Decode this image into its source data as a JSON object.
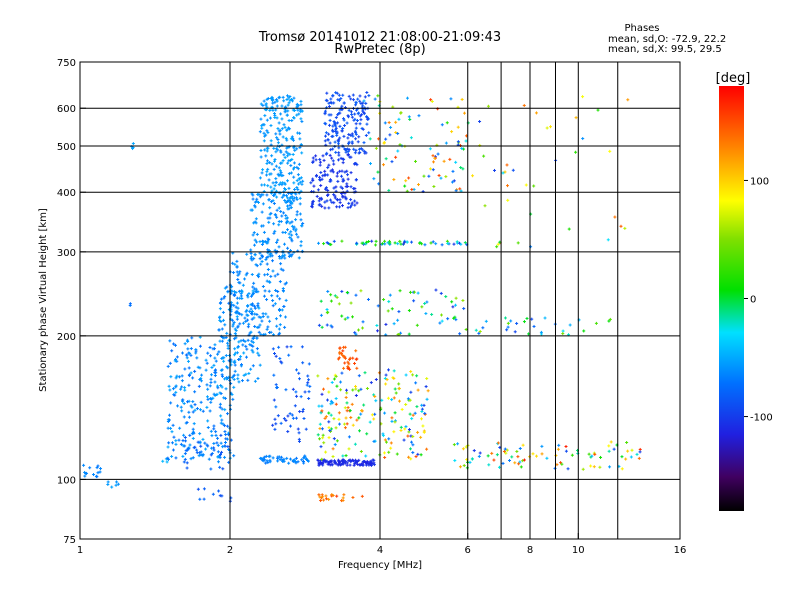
{
  "chart_data": {
    "type": "scatter",
    "title": "Tromsø 20141012 21:08:00-21:09:43",
    "subtitle": "RwPretec (8p)",
    "stats": {
      "heading": "Phases",
      "line1": "mean, sd,O: -72.9, 22.2",
      "line2": "mean, sd,X:  99.5, 29.5"
    },
    "xlabel": "Frequency [MHz]",
    "ylabel": "Stationary phase Virtual Height [km]",
    "x_scale": "log",
    "y_scale": "log",
    "xlim": [
      1,
      16
    ],
    "ylim": [
      75,
      750
    ],
    "x_ticks": [
      1,
      2,
      4,
      6,
      8,
      10,
      16
    ],
    "x_tick_labels": [
      "1",
      "2",
      "4",
      "6",
      "8",
      "10",
      "16"
    ],
    "x_grid": [
      2,
      4,
      6,
      7,
      8,
      9,
      10,
      12
    ],
    "y_ticks": [
      75,
      100,
      200,
      300,
      400,
      500,
      600,
      750
    ],
    "y_tick_labels": [
      "75",
      "100",
      "200",
      "300",
      "400",
      "500",
      "600",
      "750"
    ],
    "y_grid": [
      100,
      200,
      300,
      400,
      500,
      600
    ],
    "grid": true,
    "colorbar": {
      "label": "[deg]",
      "range": [
        -180,
        180
      ],
      "ticks": [
        100,
        0,
        -100
      ],
      "tick_labels": [
        "100",
        "0",
        "-100"
      ]
    },
    "clusters": [
      {
        "x": [
          1.0,
          1.1
        ],
        "h": [
          100,
          108
        ],
        "phase": [
          -70,
          -60
        ],
        "n": 14
      },
      {
        "x": [
          1.1,
          1.2
        ],
        "h": [
          96,
          100
        ],
        "phase": [
          -60,
          -50
        ],
        "n": 6
      },
      {
        "x": [
          1.27,
          1.29
        ],
        "h": [
          490,
          520
        ],
        "phase": [
          -60,
          -50
        ],
        "n": 4
      },
      {
        "x": [
          1.25,
          1.27
        ],
        "h": [
          228,
          236
        ],
        "phase": [
          -75,
          -65
        ],
        "n": 2
      },
      {
        "x": [
          1.4,
          1.5
        ],
        "h": [
          108,
          112
        ],
        "phase": [
          -50,
          -40
        ],
        "n": 3
      },
      {
        "x": [
          1.5,
          2.05
        ],
        "h": [
          110,
          200
        ],
        "phase": [
          -75,
          -50
        ],
        "n": 260
      },
      {
        "x": [
          1.6,
          2.0
        ],
        "h": [
          105,
          125
        ],
        "phase": [
          -90,
          -60
        ],
        "n": 40
      },
      {
        "x": [
          1.7,
          2.1
        ],
        "h": [
          88,
          96
        ],
        "phase": [
          -100,
          -70
        ],
        "n": 10
      },
      {
        "x": [
          1.9,
          2.3
        ],
        "h": [
          160,
          260
        ],
        "phase": [
          -70,
          -50
        ],
        "n": 150
      },
      {
        "x": [
          2.0,
          2.6
        ],
        "h": [
          200,
          300
        ],
        "phase": [
          -70,
          -55
        ],
        "n": 160
      },
      {
        "x": [
          2.2,
          2.8
        ],
        "h": [
          290,
          400
        ],
        "phase": [
          -68,
          -55
        ],
        "n": 160
      },
      {
        "x": [
          2.3,
          2.8
        ],
        "h": [
          380,
          640
        ],
        "phase": [
          -62,
          -50
        ],
        "n": 260
      },
      {
        "x": [
          2.3,
          2.9
        ],
        "h": [
          108,
          112
        ],
        "phase": [
          -70,
          -60
        ],
        "n": 50
      },
      {
        "x": [
          2.4,
          2.9
        ],
        "h": [
          120,
          190
        ],
        "phase": [
          -100,
          -70
        ],
        "n": 60
      },
      {
        "x": [
          2.9,
          3.6
        ],
        "h": [
          370,
          480
        ],
        "phase": [
          -110,
          -95
        ],
        "n": 140
      },
      {
        "x": [
          3.1,
          3.8
        ],
        "h": [
          480,
          650
        ],
        "phase": [
          -100,
          -80
        ],
        "n": 180
      },
      {
        "x": [
          3.0,
          3.9
        ],
        "h": [
          107,
          110
        ],
        "phase": [
          -115,
          -105
        ],
        "n": 110
      },
      {
        "x": [
          3.0,
          5.0
        ],
        "h": [
          110,
          170
        ],
        "phase": [
          -110,
          150
        ],
        "n": 200
      },
      {
        "x": [
          3.3,
          3.6
        ],
        "h": [
          170,
          190
        ],
        "phase": [
          135,
          160
        ],
        "n": 30
      },
      {
        "x": [
          3.0,
          3.7
        ],
        "h": [
          90,
          93
        ],
        "phase": [
          120,
          160
        ],
        "n": 20
      },
      {
        "x": [
          3.0,
          6.0
        ],
        "h": [
          310,
          316
        ],
        "phase": [
          -110,
          40
        ],
        "n": 60
      },
      {
        "x": [
          3.0,
          6.0
        ],
        "h": [
          200,
          250
        ],
        "phase": [
          -110,
          60
        ],
        "n": 80
      },
      {
        "x": [
          3.7,
          6.0
        ],
        "h": [
          400,
          640
        ],
        "phase": [
          -100,
          160
        ],
        "n": 100
      },
      {
        "x": [
          5.5,
          13.5
        ],
        "h": [
          105,
          120
        ],
        "phase": [
          -110,
          170
        ],
        "n": 90
      },
      {
        "x": [
          6.2,
          12.0
        ],
        "h": [
          200,
          220
        ],
        "phase": [
          -100,
          60
        ],
        "n": 30
      },
      {
        "x": [
          6.0,
          13.0
        ],
        "h": [
          300,
          640
        ],
        "phase": [
          -100,
          160
        ],
        "n": 40
      }
    ]
  }
}
